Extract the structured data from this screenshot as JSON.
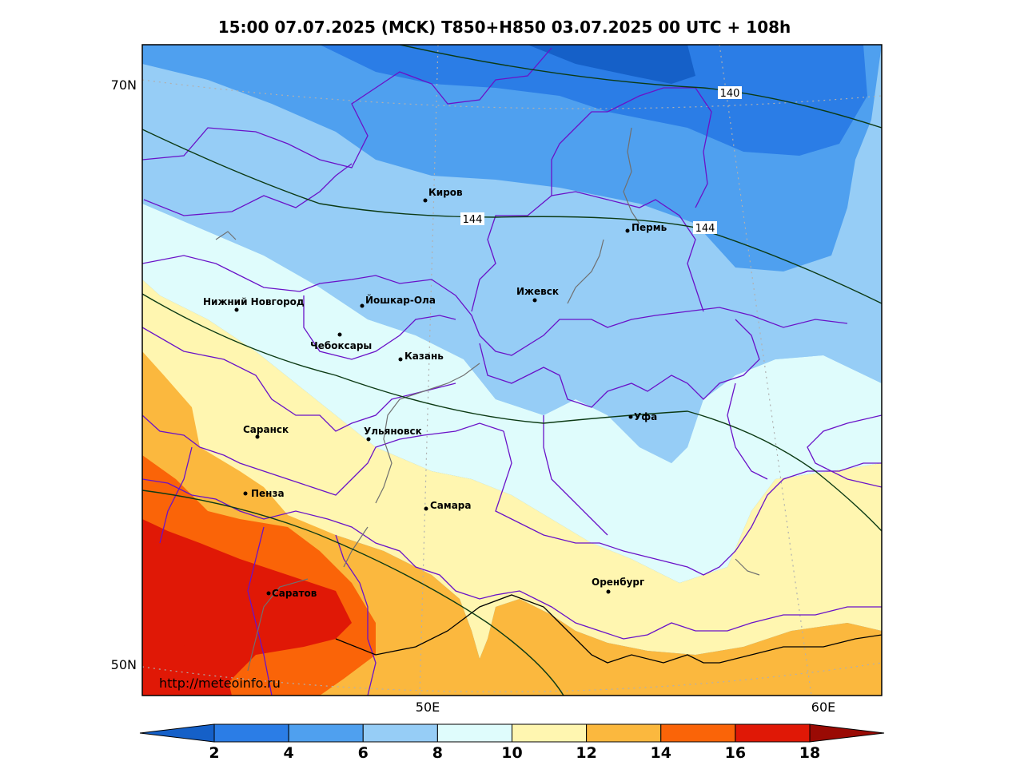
{
  "title": "15:00 07.07.2025 (MCK) T850+H850 03.07.2025 00 UTC + 108h",
  "watermark": "http://meteoinfo.ru",
  "lat_labels": [
    "70N",
    "50N"
  ],
  "lon_labels": [
    "50E",
    "60E"
  ],
  "cities": {
    "kirov": "Киров",
    "perm": "Пермь",
    "nizhny": "Нижний Новгород",
    "yoshkar": "Йошкар-Ола",
    "izhevsk": "Ижевск",
    "cheboksary": "Чебоксары",
    "kazan": "Казань",
    "ufa": "Уфа",
    "saransk": "Саранск",
    "ulyanovsk": "Ульяновск",
    "penza": "Пенза",
    "samara": "Самара",
    "orenburg": "Оренбург",
    "saratov": "Саратов"
  },
  "contour_labels": [
    "140",
    "144",
    "144"
  ],
  "colorbar": {
    "ticks": [
      "2",
      "4",
      "6",
      "8",
      "10",
      "12",
      "14",
      "16",
      "18"
    ],
    "colors": [
      "#1560c8",
      "#2b7de6",
      "#4fa0ef",
      "#96cdf6",
      "#dffcfc",
      "#fff6b0",
      "#fbb83e",
      "#fa6408",
      "#e01806",
      "#9a0a04"
    ]
  }
}
